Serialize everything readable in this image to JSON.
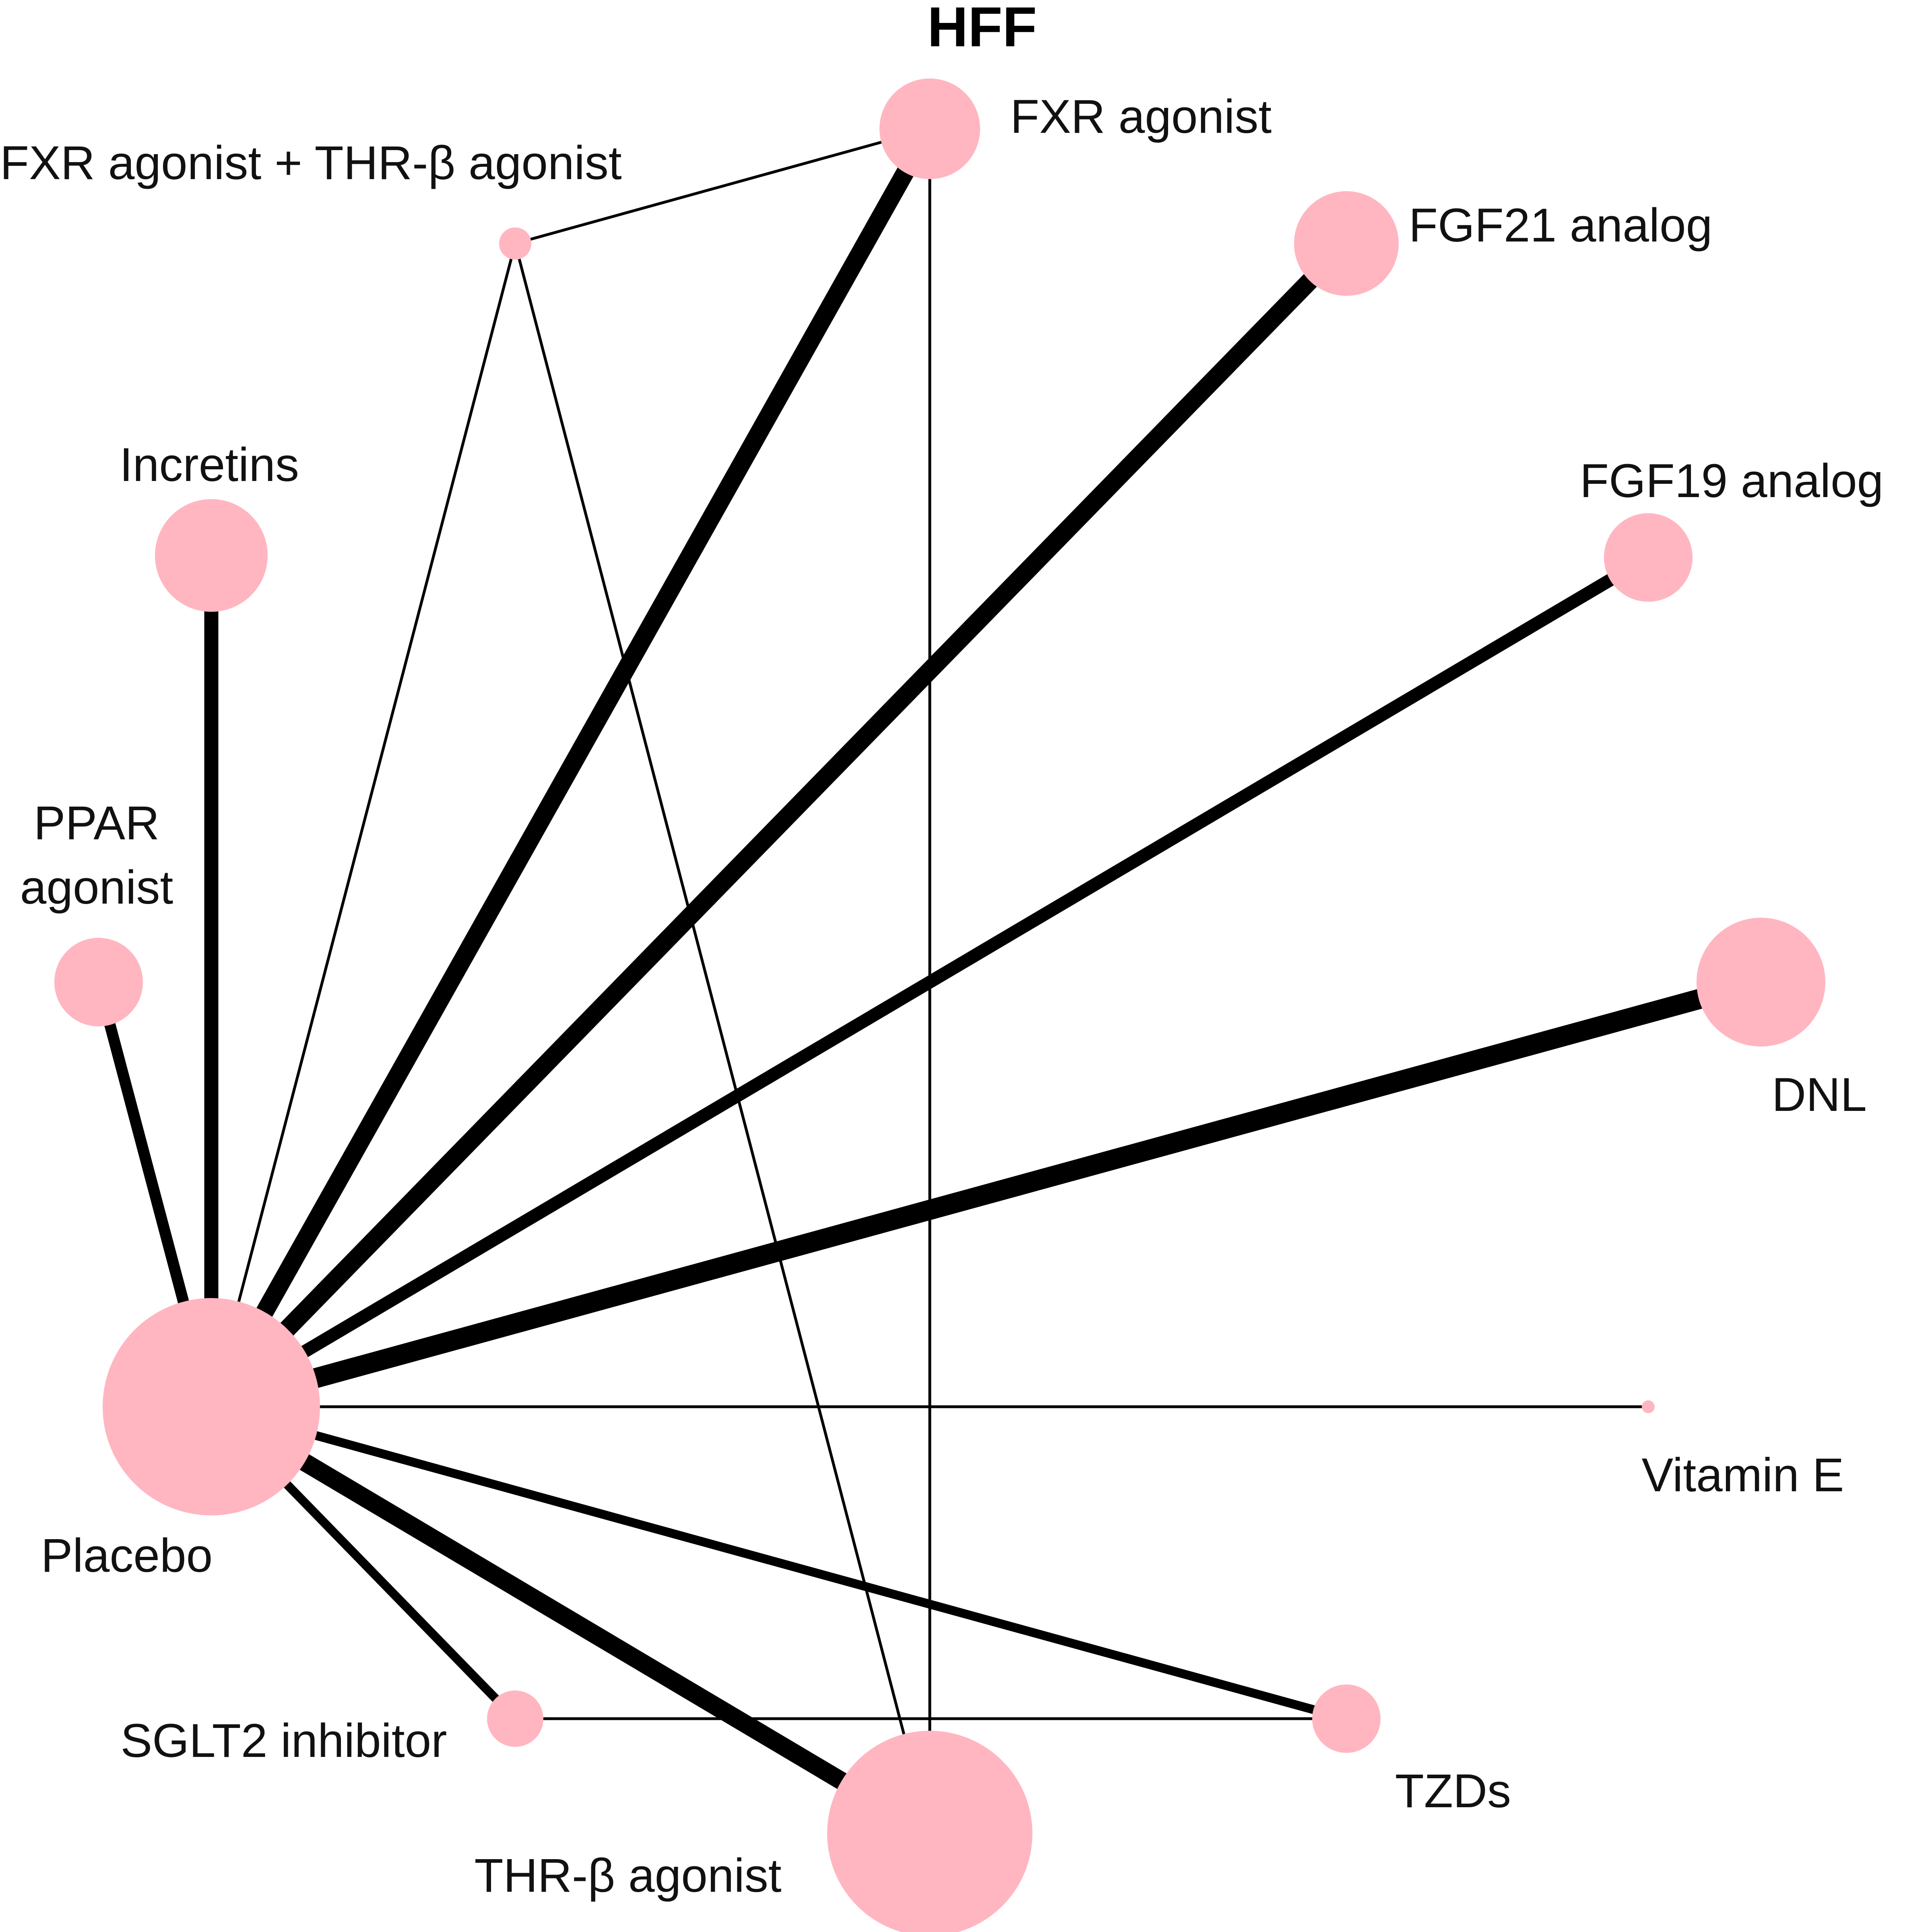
{
  "title": "HFF",
  "colors": {
    "node": "#ffb6c1",
    "edge": "#000000",
    "text": "#111111"
  },
  "nodes": {
    "placebo": "Placebo",
    "fxr": "FXR agonist",
    "fxr_thr": "FXR agonist + THR-β agonist",
    "fgf21": "FGF21 analog",
    "fgf19": "FGF19 analog",
    "incretins": "Incretins",
    "ppar_line1": "PPAR",
    "ppar_line2": "agonist",
    "dnl": "DNL",
    "vitamin_e": "Vitamin E",
    "tzds": "TZDs",
    "sglt2": "SGLT2 inhibitor",
    "thr": "THR-β agonist"
  }
}
